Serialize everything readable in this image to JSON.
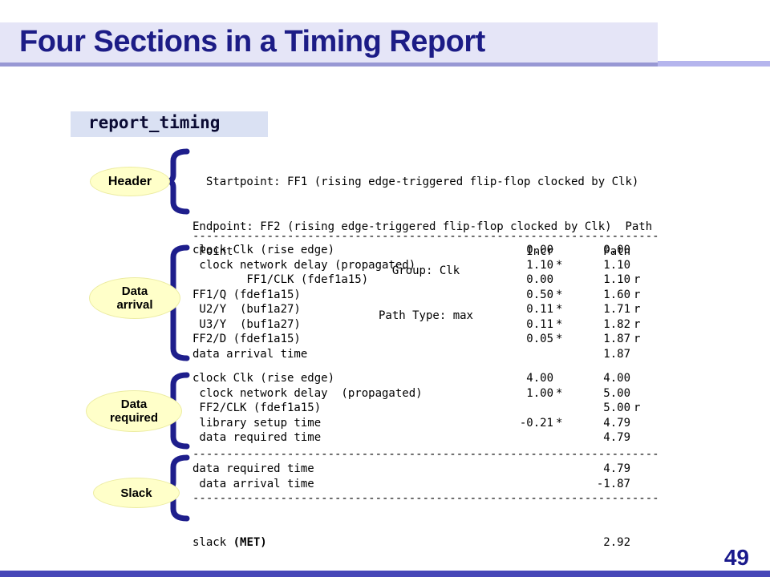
{
  "slide": {
    "title": "Four Sections in a Timing Report",
    "command_label": "report_timing",
    "page_number": "49"
  },
  "colors": {
    "accent_navy": "#1C1C86",
    "title_bg": "#E5E5F7",
    "underline": "#9898D4",
    "command_bg": "#DAE1F3",
    "oval_fill": "#FFFFC9",
    "brace": "#1E1E8C",
    "bottom_bar": "#4747B8"
  },
  "section_labels": [
    {
      "id": "header",
      "lines": [
        "Header"
      ]
    },
    {
      "id": "arrival",
      "lines": [
        "Data",
        "arrival"
      ]
    },
    {
      "id": "required",
      "lines": [
        "Data",
        "required"
      ]
    },
    {
      "id": "slack",
      "lines": [
        "Slack"
      ]
    }
  ],
  "report": {
    "header_lines": [
      "  Startpoint: FF1 (rising edge-triggered flip-flop clocked by Clk)",
      "Endpoint: FF2 (rising edge-triggered flip-flop clocked by Clk)  Path",
      "Group: Clk",
      "Path Type: max"
    ],
    "column_header": {
      "point": " Point",
      "incr": "Incr",
      "star": "",
      "path": "Path",
      "r": ""
    },
    "divider": "---------------------------------------------------------------------",
    "data_arrival_rows": [
      {
        "point": "clock Clk (rise edge)",
        "incr": "0.00",
        "star": "",
        "path": "0.00",
        "r": ""
      },
      {
        "point": " clock network delay (propagated)",
        "incr": "1.10",
        "star": "*",
        "path": "1.10",
        "r": ""
      },
      {
        "point": "        FF1/CLK (fdef1a15)",
        "incr": "0.00",
        "star": "",
        "path": "1.10",
        "r": "r"
      },
      {
        "point": "FF1/Q (fdef1a15)",
        "incr": "0.50",
        "star": "*",
        "path": "1.60",
        "r": "r"
      },
      {
        "point": " U2/Y  (buf1a27)",
        "incr": "0.11",
        "star": "*",
        "path": "1.71",
        "r": "r"
      },
      {
        "point": " U3/Y  (buf1a27)",
        "incr": "0.11",
        "star": "*",
        "path": "1.82",
        "r": "r"
      },
      {
        "point": "FF2/D (fdef1a15)",
        "incr": "0.05",
        "star": "*",
        "path": "1.87",
        "r": "r"
      },
      {
        "point": "data arrival time",
        "incr": "",
        "star": "",
        "path": "1.87",
        "r": ""
      }
    ],
    "data_required_rows": [
      {
        "point": "clock Clk (rise edge)",
        "incr": "4.00",
        "star": "",
        "path": "4.00",
        "r": ""
      },
      {
        "point": " clock network delay  (propagated)",
        "incr": "1.00",
        "star": "*",
        "path": "5.00",
        "r": ""
      },
      {
        "point": " FF2/CLK (fdef1a15)",
        "incr": "",
        "star": "",
        "path": "5.00",
        "r": "r"
      },
      {
        "point": " library setup time",
        "incr": "-0.21",
        "star": "*",
        "path": "4.79",
        "r": ""
      },
      {
        "point": " data required time",
        "incr": "",
        "star": "",
        "path": "4.79",
        "r": ""
      }
    ],
    "slack_pair_rows": [
      {
        "point": "data required time",
        "incr": "",
        "star": "",
        "path": "4.79",
        "r": ""
      },
      {
        "point": " data arrival time",
        "incr": "",
        "star": "",
        "path": "-1.87",
        "r": ""
      }
    ],
    "slack_final": {
      "label": "slack",
      "met": "(MET)",
      "value": "2.92"
    }
  }
}
